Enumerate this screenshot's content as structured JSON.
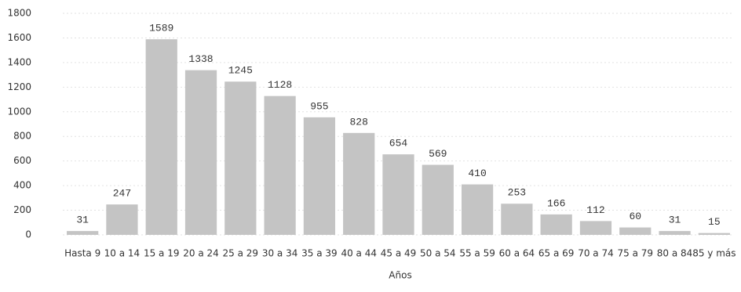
{
  "chart_data": {
    "type": "bar",
    "x_label": "Años",
    "categories": [
      "Hasta 9",
      "10 a 14",
      "15 a 19",
      "20 a 24",
      "25 a 29",
      "30 a 34",
      "35 a 39",
      "40 a 44",
      "45 a 49",
      "50 a 54",
      "55 a 59",
      "60 a 64",
      "65 a 69",
      "70 a 74",
      "75 a 79",
      "80 a 84",
      "85 y más"
    ],
    "values": [
      31,
      247,
      1589,
      1338,
      1245,
      1128,
      955,
      828,
      654,
      569,
      410,
      253,
      166,
      112,
      60,
      31,
      15
    ],
    "color": "#c4c4c4",
    "ylim": [
      0,
      1800
    ],
    "yticks": [
      0,
      200,
      400,
      600,
      800,
      1000,
      1200,
      1400,
      1600,
      1800
    ],
    "grid": true
  }
}
